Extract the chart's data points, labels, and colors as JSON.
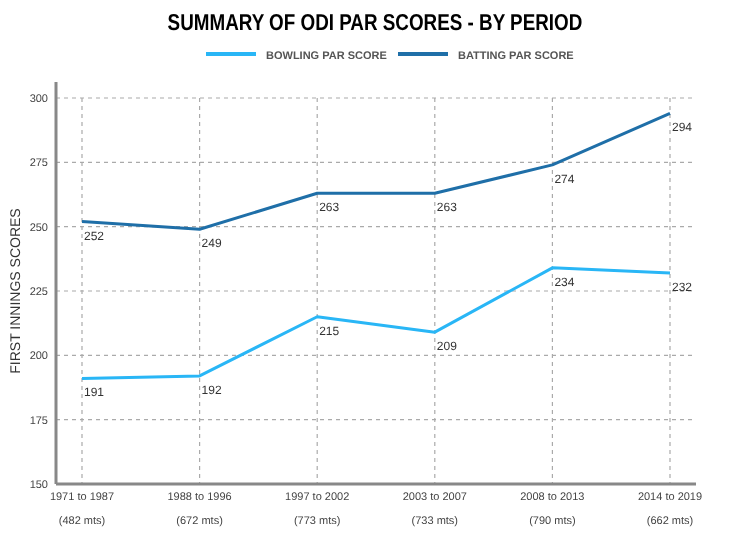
{
  "chart_data": {
    "type": "line",
    "title": "SUMMARY OF ODI PAR SCORES - BY PERIOD",
    "ylabel": "FIRST INNINGS SCORES",
    "categories": [
      "1971 to 1987\n(482 mts)",
      "1988 to 1996\n(672 mts)",
      "1997 to 2002\n(773 mts)",
      "2003 to 2007\n(733 mts)",
      "2008 to 2013\n(790 mts)",
      "2014 to 2019\n(662 mts)"
    ],
    "series": [
      {
        "name": "BOWLING PAR SCORE",
        "color": "#29b6f6",
        "values": [
          191,
          192,
          215,
          209,
          234,
          232
        ]
      },
      {
        "name": "BATTING PAR SCORE",
        "color": "#1f6fa8",
        "values": [
          252,
          249,
          263,
          263,
          274,
          294
        ]
      }
    ],
    "ylim": [
      150,
      300
    ],
    "yticks": [
      150,
      175,
      200,
      225,
      250,
      275,
      300
    ],
    "grid": true,
    "legend": "top",
    "data_labels": true,
    "marker": "none",
    "line_style": "solid"
  }
}
